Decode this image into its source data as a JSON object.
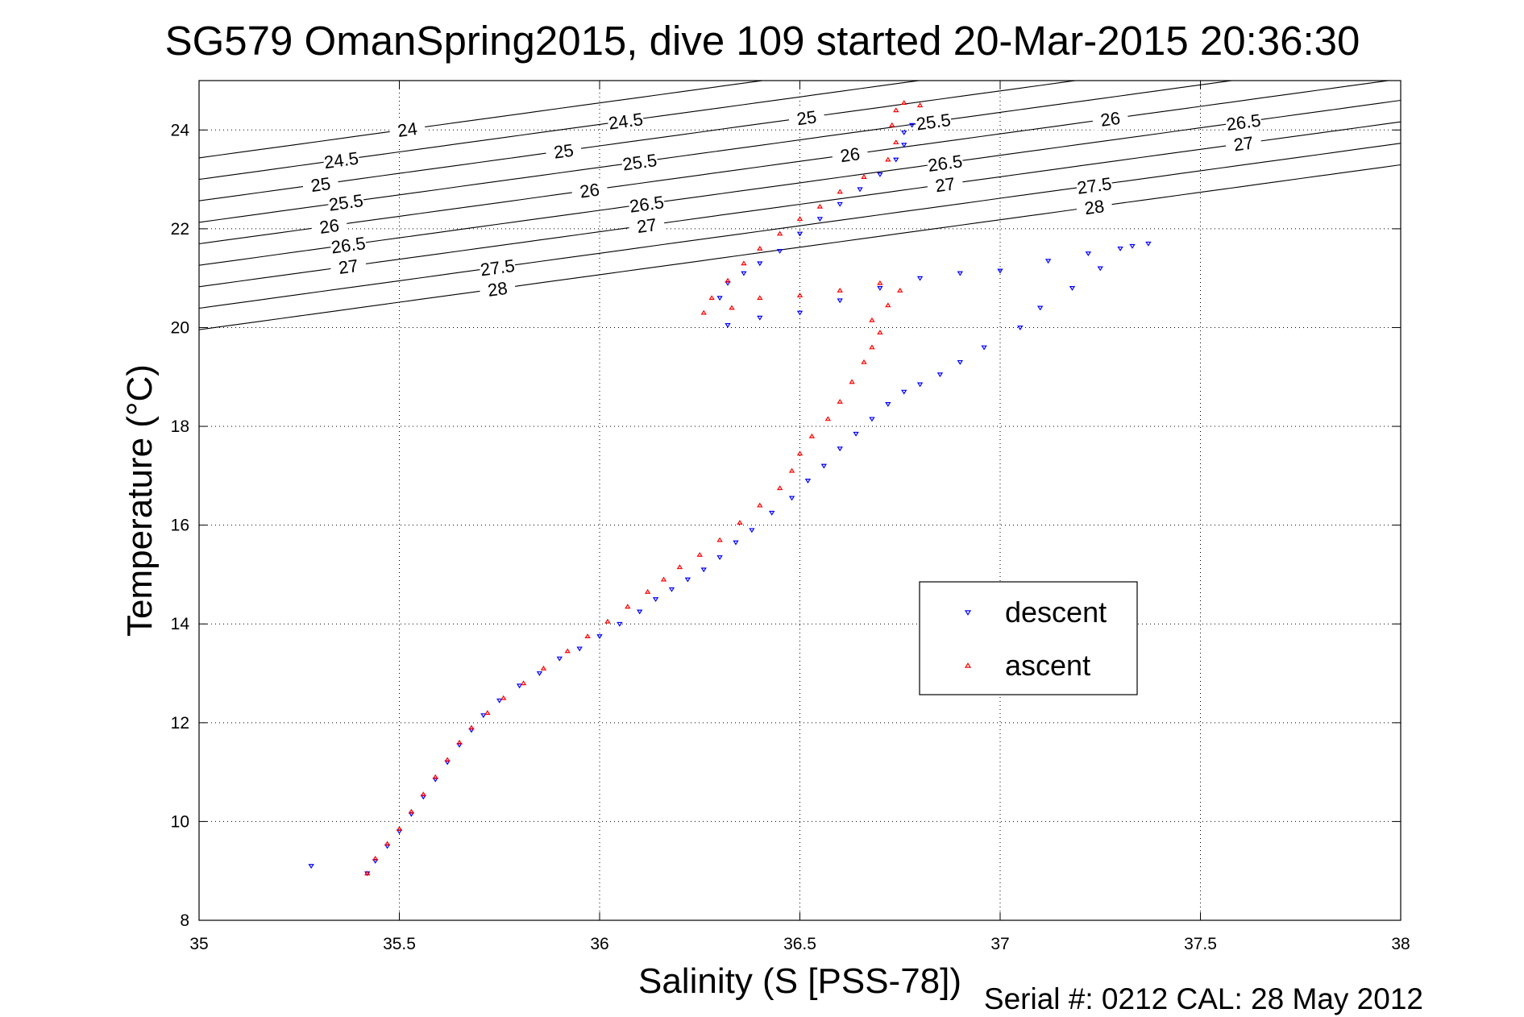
{
  "chart_data": {
    "type": "scatter",
    "title": "SG579 OmanSpring2015, dive 109 started 20-Mar-2015 20:36:30",
    "xlabel": "Salinity (S [PSS-78])",
    "ylabel": "Temperature (°C)",
    "xlim": [
      35,
      38
    ],
    "ylim": [
      8,
      25
    ],
    "xticks": [
      35,
      35.5,
      36,
      36.5,
      37,
      37.5,
      38
    ],
    "xtick_labels": [
      "35",
      "35.5",
      "36",
      "36.5",
      "37",
      "37.5",
      "38"
    ],
    "yticks": [
      8,
      10,
      12,
      14,
      16,
      18,
      20,
      22,
      24
    ],
    "ytick_labels": [
      "8",
      "10",
      "12",
      "14",
      "16",
      "18",
      "20",
      "22",
      "24"
    ],
    "grid": true,
    "legend_position": "center-right",
    "footer": "Serial #: 0212  CAL: 28 May 2012",
    "series": [
      {
        "name": "descent",
        "color": "#0000ff",
        "marker": "triangle-down",
        "points": [
          [
            35.28,
            9.1
          ],
          [
            35.42,
            8.95
          ],
          [
            35.44,
            9.2
          ],
          [
            35.47,
            9.5
          ],
          [
            35.5,
            9.8
          ],
          [
            35.53,
            10.15
          ],
          [
            35.56,
            10.5
          ],
          [
            35.59,
            10.85
          ],
          [
            35.62,
            11.2
          ],
          [
            35.65,
            11.55
          ],
          [
            35.68,
            11.85
          ],
          [
            35.71,
            12.15
          ],
          [
            35.75,
            12.45
          ],
          [
            35.8,
            12.75
          ],
          [
            35.85,
            13.0
          ],
          [
            35.9,
            13.3
          ],
          [
            35.95,
            13.5
          ],
          [
            36.0,
            13.75
          ],
          [
            36.05,
            14.0
          ],
          [
            36.1,
            14.25
          ],
          [
            36.14,
            14.5
          ],
          [
            36.18,
            14.7
          ],
          [
            36.22,
            14.9
          ],
          [
            36.26,
            15.1
          ],
          [
            36.3,
            15.35
          ],
          [
            36.34,
            15.65
          ],
          [
            36.38,
            15.9
          ],
          [
            36.43,
            16.25
          ],
          [
            36.48,
            16.55
          ],
          [
            36.52,
            16.9
          ],
          [
            36.56,
            17.2
          ],
          [
            36.6,
            17.55
          ],
          [
            36.64,
            17.85
          ],
          [
            36.68,
            18.15
          ],
          [
            36.72,
            18.45
          ],
          [
            36.76,
            18.7
          ],
          [
            36.8,
            18.85
          ],
          [
            36.85,
            19.05
          ],
          [
            36.9,
            19.3
          ],
          [
            36.96,
            19.6
          ],
          [
            37.05,
            20.0
          ],
          [
            37.1,
            20.4
          ],
          [
            37.18,
            20.8
          ],
          [
            37.25,
            21.2
          ],
          [
            37.33,
            21.65
          ],
          [
            37.37,
            21.7
          ],
          [
            37.3,
            21.6
          ],
          [
            37.22,
            21.5
          ],
          [
            37.12,
            21.35
          ],
          [
            37.0,
            21.15
          ],
          [
            36.9,
            21.1
          ],
          [
            36.8,
            21.0
          ],
          [
            36.7,
            20.8
          ],
          [
            36.6,
            20.55
          ],
          [
            36.5,
            20.3
          ],
          [
            36.4,
            20.2
          ],
          [
            36.32,
            20.05
          ],
          [
            36.3,
            20.6
          ],
          [
            36.32,
            20.9
          ],
          [
            36.36,
            21.1
          ],
          [
            36.4,
            21.3
          ],
          [
            36.45,
            21.55
          ],
          [
            36.5,
            21.9
          ],
          [
            36.55,
            22.2
          ],
          [
            36.6,
            22.5
          ],
          [
            36.65,
            22.8
          ],
          [
            36.7,
            23.1
          ],
          [
            36.74,
            23.4
          ],
          [
            36.76,
            23.7
          ],
          [
            36.76,
            23.95
          ],
          [
            36.78,
            24.1
          ]
        ]
      },
      {
        "name": "ascent",
        "color": "#ff0000",
        "marker": "triangle-up",
        "points": [
          [
            35.42,
            8.95
          ],
          [
            35.44,
            9.25
          ],
          [
            35.47,
            9.55
          ],
          [
            35.5,
            9.85
          ],
          [
            35.53,
            10.2
          ],
          [
            35.56,
            10.55
          ],
          [
            35.59,
            10.9
          ],
          [
            35.62,
            11.25
          ],
          [
            35.65,
            11.6
          ],
          [
            35.68,
            11.9
          ],
          [
            35.72,
            12.2
          ],
          [
            35.76,
            12.5
          ],
          [
            35.81,
            12.8
          ],
          [
            35.86,
            13.1
          ],
          [
            35.92,
            13.45
          ],
          [
            35.97,
            13.75
          ],
          [
            36.02,
            14.05
          ],
          [
            36.07,
            14.35
          ],
          [
            36.12,
            14.65
          ],
          [
            36.16,
            14.9
          ],
          [
            36.2,
            15.15
          ],
          [
            36.25,
            15.4
          ],
          [
            36.3,
            15.7
          ],
          [
            36.35,
            16.05
          ],
          [
            36.4,
            16.4
          ],
          [
            36.45,
            16.75
          ],
          [
            36.48,
            17.1
          ],
          [
            36.5,
            17.45
          ],
          [
            36.53,
            17.8
          ],
          [
            36.57,
            18.15
          ],
          [
            36.6,
            18.5
          ],
          [
            36.63,
            18.9
          ],
          [
            36.66,
            19.3
          ],
          [
            36.68,
            19.6
          ],
          [
            36.7,
            19.9
          ],
          [
            36.68,
            20.15
          ],
          [
            36.72,
            20.45
          ],
          [
            36.75,
            20.75
          ],
          [
            36.7,
            20.9
          ],
          [
            36.6,
            20.75
          ],
          [
            36.5,
            20.65
          ],
          [
            36.4,
            20.6
          ],
          [
            36.33,
            20.4
          ],
          [
            36.26,
            20.3
          ],
          [
            36.28,
            20.6
          ],
          [
            36.32,
            20.95
          ],
          [
            36.36,
            21.3
          ],
          [
            36.4,
            21.6
          ],
          [
            36.45,
            21.9
          ],
          [
            36.5,
            22.2
          ],
          [
            36.55,
            22.45
          ],
          [
            36.6,
            22.75
          ],
          [
            36.66,
            23.05
          ],
          [
            36.72,
            23.4
          ],
          [
            36.74,
            23.75
          ],
          [
            36.73,
            24.1
          ],
          [
            36.74,
            24.4
          ],
          [
            36.76,
            24.55
          ],
          [
            36.8,
            24.5
          ]
        ]
      }
    ],
    "contours": [
      {
        "sigma": 24,
        "labels": [
          "24"
        ]
      },
      {
        "sigma": 24.5,
        "labels": [
          "24.5",
          "24.5"
        ]
      },
      {
        "sigma": 25,
        "labels": [
          "25",
          "25",
          "25"
        ]
      },
      {
        "sigma": 25.5,
        "labels": [
          "25.5",
          "25.5",
          "25.5"
        ]
      },
      {
        "sigma": 26,
        "labels": [
          "26",
          "26",
          "26",
          "26"
        ]
      },
      {
        "sigma": 26.5,
        "labels": [
          "26.5",
          "26.5",
          "26.5",
          "26.5"
        ]
      },
      {
        "sigma": 27,
        "labels": [
          "27",
          "27",
          "27",
          "27"
        ]
      },
      {
        "sigma": 27.5,
        "labels": [
          "27.5",
          "27.5"
        ]
      },
      {
        "sigma": 28,
        "labels": [
          "28",
          "28"
        ]
      }
    ]
  }
}
